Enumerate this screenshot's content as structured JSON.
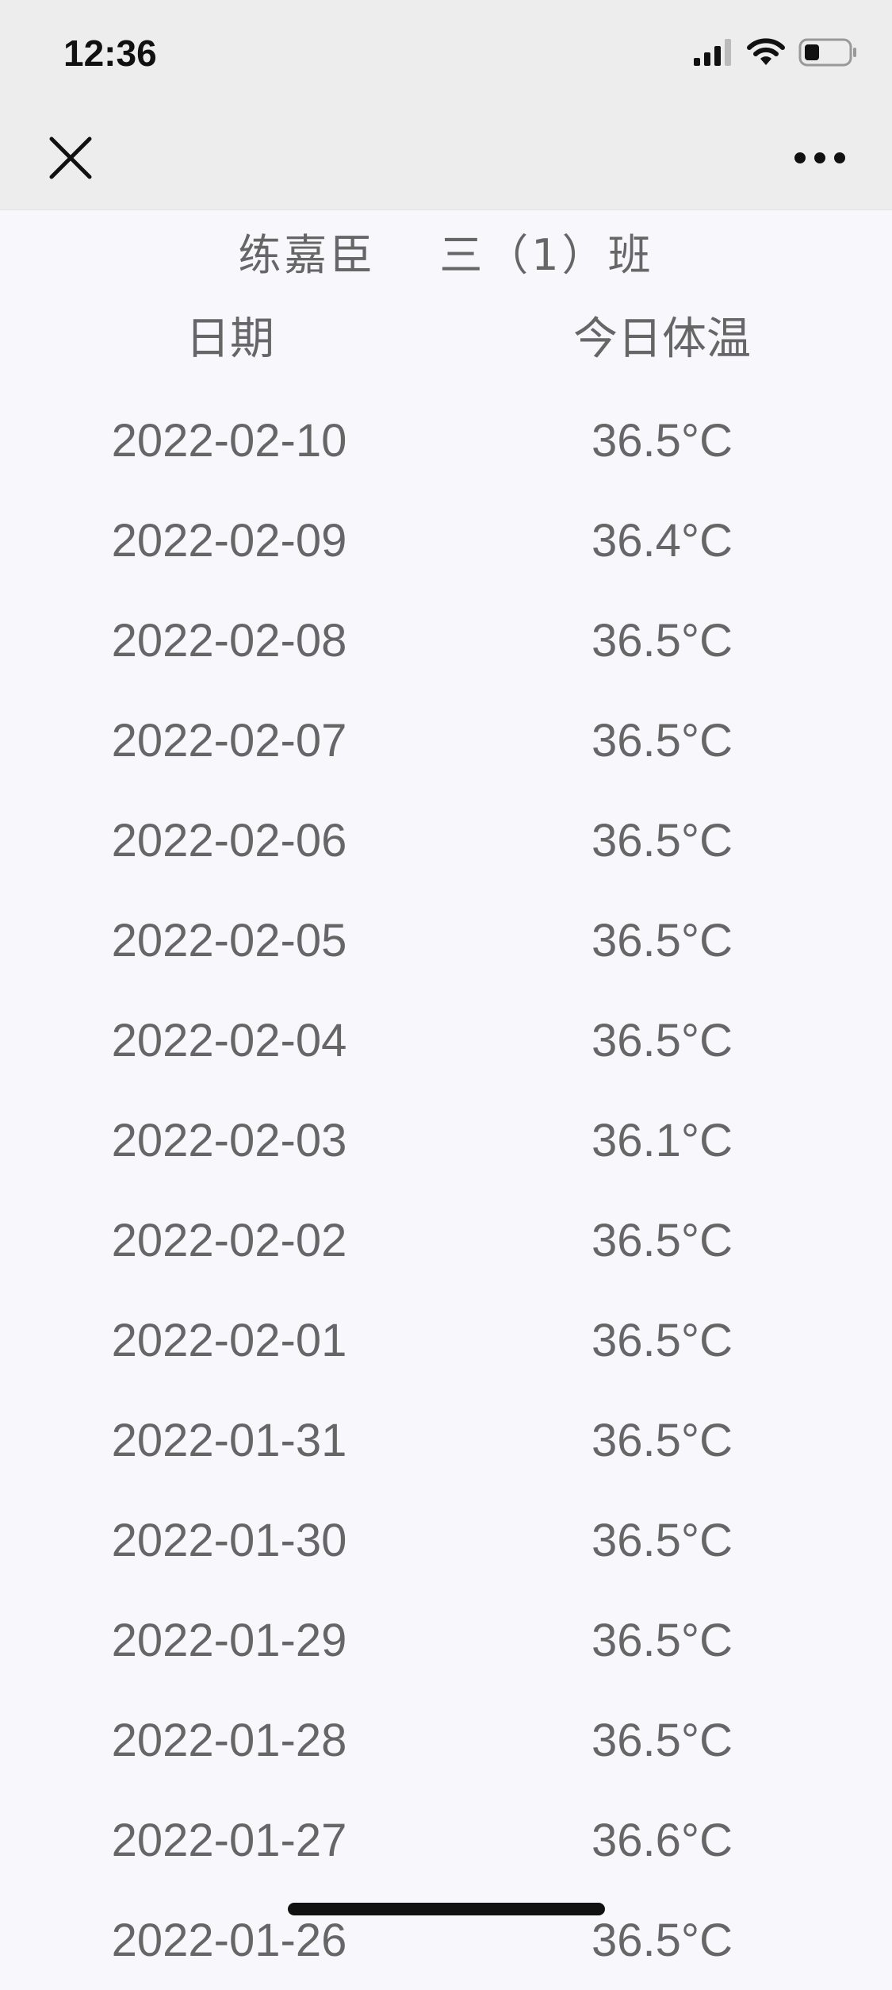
{
  "status_bar": {
    "time": "12:36",
    "icons": [
      "signal-icon",
      "wifi-icon",
      "battery-icon"
    ]
  },
  "nav": {
    "close_icon": "close-icon",
    "more_icon": "more-icon"
  },
  "header": {
    "student_name": "练嘉臣",
    "class_name": "三（1）班"
  },
  "table": {
    "columns": [
      "日期",
      "今日体温"
    ],
    "rows": [
      {
        "date": "2022-02-10",
        "temp": "36.5°C"
      },
      {
        "date": "2022-02-09",
        "temp": "36.4°C"
      },
      {
        "date": "2022-02-08",
        "temp": "36.5°C"
      },
      {
        "date": "2022-02-07",
        "temp": "36.5°C"
      },
      {
        "date": "2022-02-06",
        "temp": "36.5°C"
      },
      {
        "date": "2022-02-05",
        "temp": "36.5°C"
      },
      {
        "date": "2022-02-04",
        "temp": "36.5°C"
      },
      {
        "date": "2022-02-03",
        "temp": "36.1°C"
      },
      {
        "date": "2022-02-02",
        "temp": "36.5°C"
      },
      {
        "date": "2022-02-01",
        "temp": "36.5°C"
      },
      {
        "date": "2022-01-31",
        "temp": "36.5°C"
      },
      {
        "date": "2022-01-30",
        "temp": "36.5°C"
      },
      {
        "date": "2022-01-29",
        "temp": "36.5°C"
      },
      {
        "date": "2022-01-28",
        "temp": "36.5°C"
      },
      {
        "date": "2022-01-27",
        "temp": "36.6°C"
      },
      {
        "date": "2022-01-26",
        "temp": "36.5°C"
      }
    ]
  },
  "colors": {
    "background": "#f8f7fc",
    "topbar": "#ededed",
    "text": "#666666"
  }
}
